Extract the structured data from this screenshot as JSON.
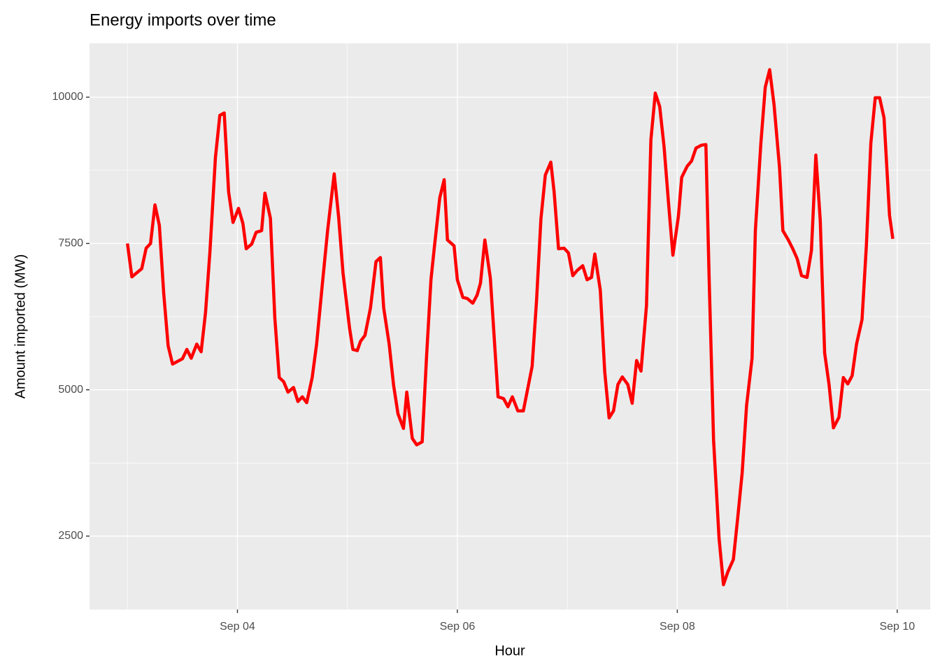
{
  "chart_data": {
    "type": "line",
    "title": "Energy imports over time",
    "x_label": "Hour",
    "y_label": "Amount imported (MW)",
    "x": [
      3.0,
      3.04,
      3.13,
      3.17,
      3.21,
      3.25,
      3.29,
      3.33,
      3.37,
      3.41,
      3.5,
      3.54,
      3.58,
      3.63,
      3.67,
      3.71,
      3.75,
      3.8,
      3.84,
      3.88,
      3.92,
      3.96,
      4.01,
      4.05,
      4.08,
      4.13,
      4.17,
      4.22,
      4.25,
      4.3,
      4.34,
      4.38,
      4.42,
      4.46,
      4.51,
      4.55,
      4.59,
      4.63,
      4.68,
      4.72,
      4.77,
      4.82,
      4.88,
      4.92,
      4.96,
      5.02,
      5.05,
      5.09,
      5.12,
      5.16,
      5.21,
      5.26,
      5.3,
      5.33,
      5.38,
      5.42,
      5.46,
      5.51,
      5.54,
      5.59,
      5.63,
      5.68,
      5.72,
      5.76,
      5.79,
      5.84,
      5.88,
      5.91,
      5.97,
      6.0,
      6.05,
      6.09,
      6.14,
      6.18,
      6.21,
      6.25,
      6.3,
      6.34,
      6.37,
      6.42,
      6.46,
      6.5,
      6.55,
      6.6,
      6.64,
      6.68,
      6.72,
      6.76,
      6.8,
      6.85,
      6.88,
      6.92,
      6.97,
      7.01,
      7.05,
      7.09,
      7.14,
      7.18,
      7.22,
      7.25,
      7.3,
      7.34,
      7.38,
      7.42,
      7.46,
      7.5,
      7.55,
      7.59,
      7.63,
      7.67,
      7.72,
      7.76,
      7.8,
      7.84,
      7.88,
      7.92,
      7.96,
      8.01,
      8.04,
      8.09,
      8.13,
      8.17,
      8.22,
      8.26,
      8.29,
      8.33,
      8.38,
      8.42,
      8.46,
      8.51,
      8.55,
      8.59,
      8.63,
      8.68,
      8.71,
      8.76,
      8.8,
      8.84,
      8.88,
      8.93,
      8.96,
      9.01,
      9.05,
      9.09,
      9.13,
      9.18,
      9.22,
      9.26,
      9.3,
      9.34,
      9.38,
      9.42,
      9.47,
      9.51,
      9.55,
      9.59,
      9.63,
      9.68,
      9.72,
      9.76,
      9.8,
      9.84,
      9.88,
      9.93,
      9.96
    ],
    "values": [
      7500,
      6930,
      7070,
      7420,
      7500,
      8160,
      7810,
      6640,
      5750,
      5440,
      5530,
      5690,
      5540,
      5780,
      5650,
      6320,
      7360,
      8970,
      9690,
      9730,
      8380,
      7860,
      8100,
      7840,
      7410,
      7490,
      7690,
      7720,
      8360,
      7930,
      6230,
      5210,
      5140,
      4960,
      5040,
      4800,
      4880,
      4780,
      5210,
      5780,
      6760,
      7720,
      8690,
      7960,
      7000,
      6050,
      5690,
      5670,
      5830,
      5930,
      6400,
      7190,
      7260,
      6400,
      5780,
      5080,
      4590,
      4340,
      4960,
      4170,
      4060,
      4110,
      5570,
      6880,
      7420,
      8280,
      8590,
      7560,
      7460,
      6880,
      6580,
      6560,
      6480,
      6620,
      6820,
      7560,
      6910,
      5750,
      4880,
      4850,
      4710,
      4880,
      4640,
      4640,
      5020,
      5400,
      6520,
      7920,
      8670,
      8890,
      8380,
      7410,
      7420,
      7340,
      6950,
      7040,
      7120,
      6880,
      6920,
      7320,
      6700,
      5310,
      4520,
      4640,
      5090,
      5220,
      5090,
      4770,
      5500,
      5320,
      6440,
      9270,
      10070,
      9840,
      9150,
      8200,
      7300,
      7960,
      8630,
      8820,
      8910,
      9130,
      9180,
      9190,
      6880,
      4140,
      2460,
      1670,
      1890,
      2100,
      2820,
      3580,
      4730,
      5540,
      7720,
      9210,
      10170,
      10470,
      9870,
      8790,
      7720,
      7560,
      7410,
      7240,
      6950,
      6920,
      7380,
      9010,
      7900,
      5630,
      5090,
      4350,
      4530,
      5210,
      5100,
      5240,
      5780,
      6200,
      7480,
      9210,
      9990,
      9990,
      9650,
      7980,
      7580
    ],
    "color": "#ff0000",
    "xlim": [
      2.655,
      10.3
    ],
    "ylim": [
      1246,
      10920
    ],
    "xticks": [
      {
        "value": 4,
        "label": "Sep 04"
      },
      {
        "value": 6,
        "label": "Sep 06"
      },
      {
        "value": 8,
        "label": "Sep 08"
      },
      {
        "value": 10,
        "label": "Sep 10"
      }
    ],
    "yticks": [
      2500,
      5000,
      7500,
      10000
    ],
    "minor_xticks": [
      3,
      5,
      7,
      9
    ],
    "minor_yticks": [
      3750,
      6250,
      8750
    ],
    "grid": true,
    "background": "#ebebeb"
  }
}
